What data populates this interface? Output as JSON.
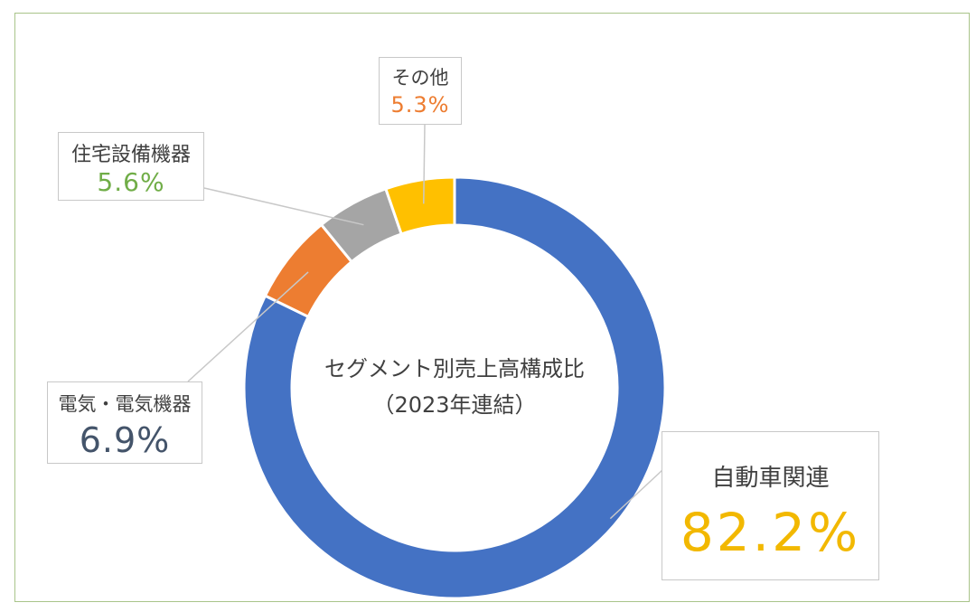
{
  "chart_data": {
    "type": "pie",
    "variant": "donut",
    "title": "セグメント別売上高構成比",
    "subtitle": "（2023年連結）",
    "categories": [
      "自動車関連",
      "電気・電気機器",
      "住宅設備機器",
      "その他"
    ],
    "values": [
      82.2,
      6.9,
      5.6,
      5.3
    ],
    "value_labels": [
      "82.2%",
      "6.9%",
      "5.6%",
      "5.3%"
    ],
    "colors": [
      "#4472c4",
      "#ed7d31",
      "#a5a5a5",
      "#ffc000"
    ],
    "label_text_colors": [
      "#f2b800",
      "#44546a",
      "#70ad47",
      "#ed7d31"
    ],
    "start_angle_deg": 0,
    "direction": "clockwise",
    "legend": "callouts"
  }
}
